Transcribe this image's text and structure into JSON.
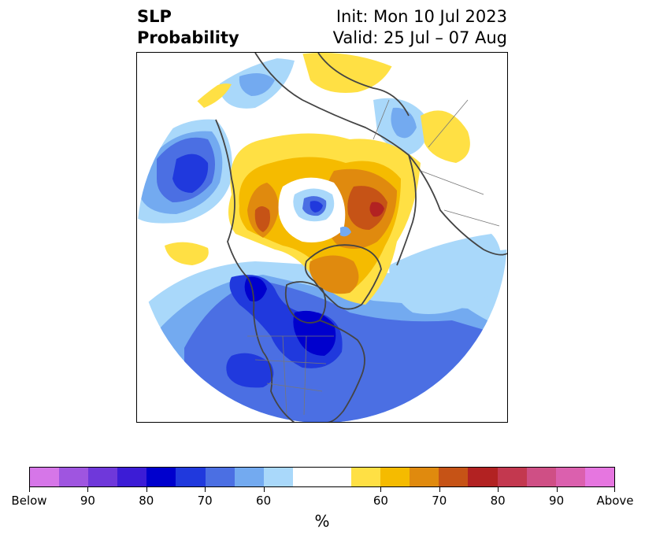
{
  "title": {
    "left_line1": "SLP",
    "left_line2": "Probability",
    "right_line1": "Init: Mon 10 Jul 2023",
    "right_line2": "Valid: 25 Jul – 07 Aug"
  },
  "colorbar": {
    "segments": [
      {
        "color": "#d676e8",
        "weight": 1
      },
      {
        "color": "#9f55e0",
        "weight": 1
      },
      {
        "color": "#6f38da",
        "weight": 1
      },
      {
        "color": "#3c1cd6",
        "weight": 1
      },
      {
        "color": "#0000cd",
        "weight": 1
      },
      {
        "color": "#2039dd",
        "weight": 1
      },
      {
        "color": "#4b6fe3",
        "weight": 1
      },
      {
        "color": "#73aaf0",
        "weight": 1
      },
      {
        "color": "#a9d8fa",
        "weight": 1
      },
      {
        "color": "#ffffff",
        "weight": 2
      },
      {
        "color": "#ffe044",
        "weight": 1
      },
      {
        "color": "#f5bb00",
        "weight": 1
      },
      {
        "color": "#e08a0e",
        "weight": 1
      },
      {
        "color": "#c65316",
        "weight": 1
      },
      {
        "color": "#b22222",
        "weight": 1
      },
      {
        "color": "#c3384f",
        "weight": 1
      },
      {
        "color": "#cf4f85",
        "weight": 1
      },
      {
        "color": "#db60ae",
        "weight": 1
      },
      {
        "color": "#e676e0",
        "weight": 1
      }
    ],
    "tick_labels": [
      "Below",
      "90",
      "80",
      "70",
      "60",
      "60",
      "70",
      "80",
      "90",
      "Above"
    ],
    "unit": "%"
  }
}
